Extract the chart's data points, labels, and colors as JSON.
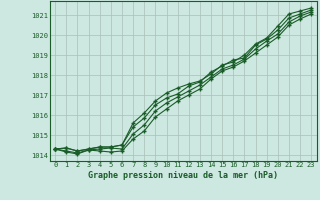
{
  "title": "Graphe pression niveau de la mer (hPa)",
  "background_color": "#cce8e0",
  "plot_bg_color": "#cce8e0",
  "grid_color": "#aabfb8",
  "line_color": "#1a5c28",
  "text_color": "#1a5c28",
  "border_color": "#1a5c28",
  "xlim": [
    -0.5,
    23.5
  ],
  "ylim": [
    1013.7,
    1021.7
  ],
  "xticks": [
    0,
    1,
    2,
    3,
    4,
    5,
    6,
    7,
    8,
    9,
    10,
    11,
    12,
    13,
    14,
    15,
    16,
    17,
    18,
    19,
    20,
    21,
    22,
    23
  ],
  "yticks": [
    1014,
    1015,
    1016,
    1017,
    1018,
    1019,
    1020,
    1021
  ],
  "series": [
    [
      1014.3,
      1014.35,
      1014.2,
      1014.3,
      1014.4,
      1014.4,
      1014.5,
      1015.6,
      1016.1,
      1016.7,
      1017.1,
      1017.35,
      1017.55,
      1017.7,
      1018.05,
      1018.5,
      1018.65,
      1019.0,
      1019.55,
      1019.85,
      1020.45,
      1021.05,
      1021.2,
      1021.35
    ],
    [
      1014.3,
      1014.35,
      1014.2,
      1014.3,
      1014.4,
      1014.4,
      1014.5,
      1015.4,
      1015.85,
      1016.5,
      1016.85,
      1017.05,
      1017.45,
      1017.65,
      1018.15,
      1018.45,
      1018.75,
      1018.85,
      1019.5,
      1019.8,
      1020.25,
      1020.85,
      1021.05,
      1021.25
    ],
    [
      1014.3,
      1014.2,
      1014.1,
      1014.25,
      1014.3,
      1014.35,
      1014.3,
      1015.05,
      1015.5,
      1016.2,
      1016.6,
      1016.9,
      1017.2,
      1017.5,
      1017.9,
      1018.3,
      1018.5,
      1018.8,
      1019.3,
      1019.7,
      1020.05,
      1020.65,
      1020.95,
      1021.15
    ],
    [
      1014.3,
      1014.15,
      1014.05,
      1014.25,
      1014.2,
      1014.15,
      1014.2,
      1014.8,
      1015.2,
      1015.9,
      1016.3,
      1016.7,
      1017.0,
      1017.3,
      1017.8,
      1018.2,
      1018.4,
      1018.7,
      1019.1,
      1019.5,
      1019.9,
      1020.5,
      1020.8,
      1021.05
    ]
  ]
}
